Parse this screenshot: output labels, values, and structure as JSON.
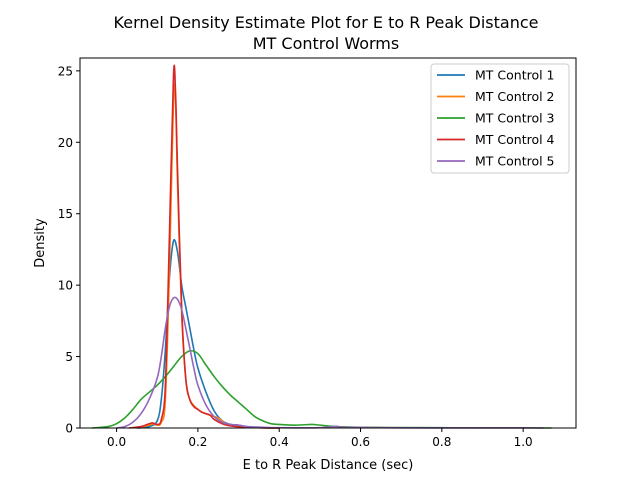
{
  "chart_data": {
    "type": "line",
    "title_line1": "Kernel Density Estimate Plot for E to R Peak Distance",
    "title_line2": "MT Control Worms",
    "xlabel": "E to R Peak Distance (sec)",
    "ylabel": "Density",
    "xlim": [
      -0.09,
      1.13
    ],
    "ylim": [
      0,
      25.9
    ],
    "xticks": [
      0.0,
      0.2,
      0.4,
      0.6,
      0.8,
      1.0
    ],
    "xtick_labels": [
      "0.0",
      "0.2",
      "0.4",
      "0.6",
      "0.8",
      "1.0"
    ],
    "yticks": [
      0,
      5,
      10,
      15,
      20,
      25
    ],
    "ytick_labels": [
      "0",
      "5",
      "10",
      "15",
      "20",
      "25"
    ],
    "grid": false,
    "legend_position": "top-right",
    "series": [
      {
        "name": "MT Control 1",
        "color": "#1f77b4",
        "points": [
          [
            0.05,
            0
          ],
          [
            0.08,
            0.1
          ],
          [
            0.1,
            0.5
          ],
          [
            0.11,
            2.0
          ],
          [
            0.12,
            5.5
          ],
          [
            0.13,
            10.5
          ],
          [
            0.14,
            13.1
          ],
          [
            0.15,
            12.3
          ],
          [
            0.16,
            10.0
          ],
          [
            0.17,
            8.5
          ],
          [
            0.18,
            7.0
          ],
          [
            0.19,
            5.5
          ],
          [
            0.2,
            4.2
          ],
          [
            0.22,
            2.5
          ],
          [
            0.24,
            1.2
          ],
          [
            0.26,
            0.5
          ],
          [
            0.28,
            0.25
          ],
          [
            0.3,
            0.2
          ],
          [
            0.32,
            0.1
          ],
          [
            0.35,
            0.03
          ],
          [
            0.4,
            0
          ]
        ]
      },
      {
        "name": "MT Control 2",
        "color": "#ff7f0e",
        "points": [
          [
            0.05,
            0
          ],
          [
            0.08,
            0.2
          ],
          [
            0.09,
            0.3
          ],
          [
            0.1,
            0.2
          ],
          [
            0.11,
            0.4
          ],
          [
            0.12,
            2.0
          ],
          [
            0.13,
            11.0
          ],
          [
            0.14,
            23.0
          ],
          [
            0.145,
            22.8
          ],
          [
            0.15,
            17.0
          ],
          [
            0.16,
            8.0
          ],
          [
            0.17,
            3.5
          ],
          [
            0.18,
            2.0
          ],
          [
            0.2,
            1.3
          ],
          [
            0.22,
            1.0
          ],
          [
            0.24,
            0.8
          ],
          [
            0.25,
            0.7
          ],
          [
            0.27,
            0.3
          ],
          [
            0.3,
            0.1
          ],
          [
            0.35,
            0.02
          ],
          [
            0.4,
            0
          ]
        ]
      },
      {
        "name": "MT Control 3",
        "color": "#2ca02c",
        "points": [
          [
            -0.06,
            0
          ],
          [
            -0.02,
            0.1
          ],
          [
            0.0,
            0.3
          ],
          [
            0.02,
            0.7
          ],
          [
            0.04,
            1.3
          ],
          [
            0.06,
            2.0
          ],
          [
            0.08,
            2.5
          ],
          [
            0.1,
            3.0
          ],
          [
            0.12,
            3.6
          ],
          [
            0.14,
            4.3
          ],
          [
            0.16,
            5.0
          ],
          [
            0.18,
            5.4
          ],
          [
            0.2,
            5.2
          ],
          [
            0.22,
            4.4
          ],
          [
            0.24,
            3.6
          ],
          [
            0.26,
            2.9
          ],
          [
            0.28,
            2.3
          ],
          [
            0.3,
            1.8
          ],
          [
            0.32,
            1.3
          ],
          [
            0.34,
            0.8
          ],
          [
            0.36,
            0.5
          ],
          [
            0.38,
            0.3
          ],
          [
            0.4,
            0.25
          ],
          [
            0.44,
            0.2
          ],
          [
            0.48,
            0.25
          ],
          [
            0.5,
            0.2
          ],
          [
            0.54,
            0.1
          ],
          [
            0.6,
            0.05
          ],
          [
            0.7,
            0.03
          ],
          [
            0.8,
            0.02
          ],
          [
            0.9,
            0.01
          ],
          [
            1.0,
            0.01
          ],
          [
            1.07,
            0
          ]
        ]
      },
      {
        "name": "MT Control 4",
        "color": "#d62728",
        "points": [
          [
            0.03,
            0
          ],
          [
            0.06,
            0.1
          ],
          [
            0.08,
            0.3
          ],
          [
            0.09,
            0.35
          ],
          [
            0.1,
            0.25
          ],
          [
            0.11,
            0.6
          ],
          [
            0.12,
            3.0
          ],
          [
            0.13,
            13.5
          ],
          [
            0.14,
            24.7
          ],
          [
            0.145,
            23.5
          ],
          [
            0.15,
            18.0
          ],
          [
            0.16,
            8.5
          ],
          [
            0.17,
            3.5
          ],
          [
            0.18,
            2.0
          ],
          [
            0.19,
            1.5
          ],
          [
            0.2,
            1.3
          ],
          [
            0.21,
            1.1
          ],
          [
            0.22,
            1.0
          ],
          [
            0.23,
            0.9
          ],
          [
            0.24,
            0.6
          ],
          [
            0.26,
            0.3
          ],
          [
            0.28,
            0.15
          ],
          [
            0.3,
            0.1
          ],
          [
            0.35,
            0.02
          ],
          [
            0.4,
            0
          ]
        ]
      },
      {
        "name": "MT Control 5",
        "color": "#9467bd",
        "points": [
          [
            0.0,
            0
          ],
          [
            0.02,
            0.1
          ],
          [
            0.04,
            0.4
          ],
          [
            0.06,
            1.0
          ],
          [
            0.08,
            2.0
          ],
          [
            0.1,
            3.5
          ],
          [
            0.11,
            5.0
          ],
          [
            0.12,
            7.0
          ],
          [
            0.13,
            8.5
          ],
          [
            0.14,
            9.1
          ],
          [
            0.15,
            9.0
          ],
          [
            0.16,
            8.3
          ],
          [
            0.17,
            7.0
          ],
          [
            0.18,
            5.6
          ],
          [
            0.19,
            4.2
          ],
          [
            0.2,
            3.0
          ],
          [
            0.22,
            1.6
          ],
          [
            0.24,
            0.8
          ],
          [
            0.26,
            0.4
          ],
          [
            0.28,
            0.25
          ],
          [
            0.3,
            0.2
          ],
          [
            0.32,
            0.1
          ],
          [
            0.36,
            0.05
          ],
          [
            0.4,
            0.02
          ],
          [
            0.5,
            0.02
          ],
          [
            0.54,
            0.12
          ],
          [
            0.56,
            0.05
          ],
          [
            0.7,
            0.01
          ],
          [
            0.9,
            0.01
          ],
          [
            1.0,
            0.01
          ],
          [
            1.05,
            0
          ]
        ]
      }
    ]
  }
}
